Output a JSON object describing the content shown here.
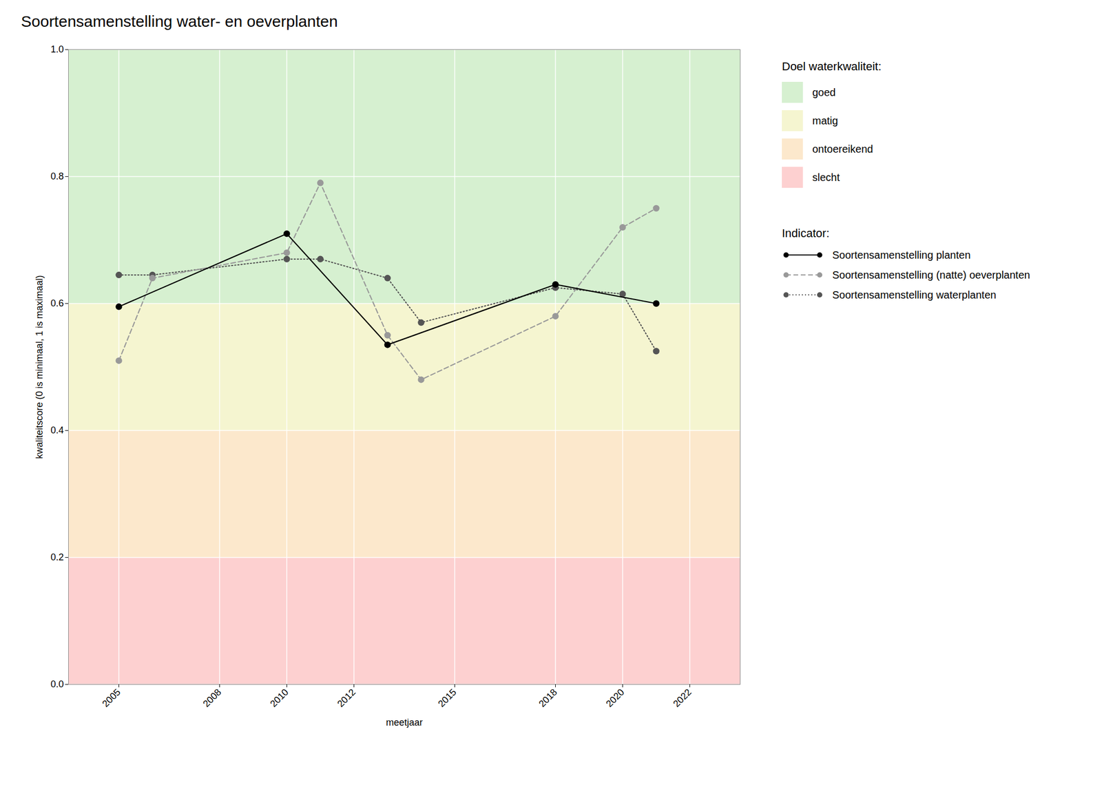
{
  "chart_data": {
    "type": "line",
    "title": "Soortensamenstelling water- en oeverplanten",
    "xlabel": "meetjaar",
    "ylabel": "kwaliteitscore (0 is minimaal, 1 is maximaal)",
    "xlim": [
      2003.5,
      2023.5
    ],
    "ylim": [
      0.0,
      1.0
    ],
    "xticks": [
      2005,
      2008,
      2010,
      2012,
      2015,
      2018,
      2020,
      2022
    ],
    "yticks": [
      {
        "value": 0.0,
        "label": "0.0"
      },
      0.2,
      0.4,
      0.6,
      0.8,
      {
        "value": 1.0,
        "label": "1.0"
      }
    ],
    "grid": true,
    "legend": "right",
    "band_legend_title": "Doel waterkwaliteit:",
    "bands": [
      {
        "name": "goed",
        "color": "#d6f0d0",
        "range": [
          0.6,
          1.0
        ]
      },
      {
        "name": "matig",
        "color": "#f5f5d0",
        "range": [
          0.4,
          0.6
        ]
      },
      {
        "name": "ontoereikend",
        "color": "#fce8cc",
        "range": [
          0.2,
          0.4
        ]
      },
      {
        "name": "slecht",
        "color": "#fdd0d0",
        "range": [
          0.0,
          0.2
        ]
      }
    ],
    "series_legend_title": "Indicator:",
    "series": [
      {
        "name": "Soortensamenstelling planten",
        "color": "#000000",
        "line_style": "solid",
        "marker": "circle",
        "x": [
          2005,
          2010,
          2013,
          2018,
          2021
        ],
        "values": [
          0.595,
          0.71,
          0.535,
          0.63,
          0.6
        ]
      },
      {
        "name": "Soortensamenstelling (natte) oeverplanten",
        "color": "#999999",
        "line_style": "dashed",
        "marker": "circle",
        "x": [
          2005,
          2006,
          2010,
          2011,
          2013,
          2014,
          2018,
          2020,
          2021
        ],
        "values": [
          0.51,
          0.64,
          0.68,
          0.79,
          0.55,
          0.48,
          0.58,
          0.72,
          0.75
        ]
      },
      {
        "name": "Soortensamenstelling waterplanten",
        "color": "#555555",
        "line_style": "dotted",
        "marker": "circle",
        "x": [
          2005,
          2006,
          2010,
          2011,
          2013,
          2014,
          2018,
          2020,
          2021
        ],
        "values": [
          0.645,
          0.645,
          0.67,
          0.67,
          0.64,
          0.57,
          0.625,
          0.615,
          0.525
        ]
      }
    ]
  }
}
